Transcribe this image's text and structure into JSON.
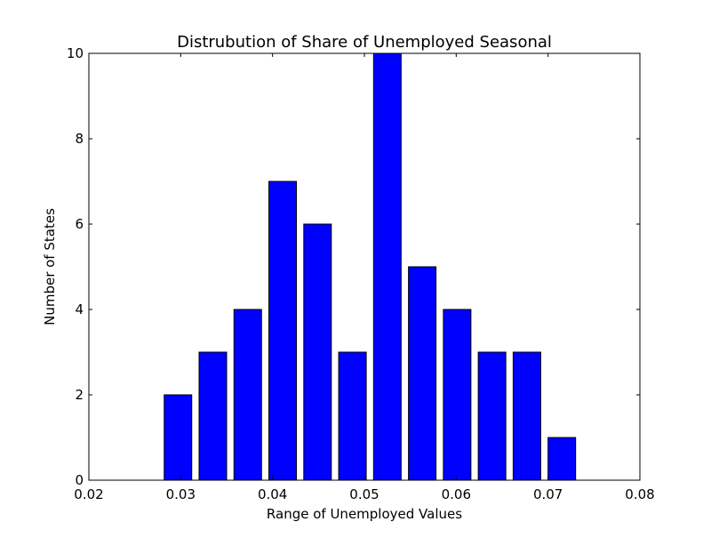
{
  "chart_data": {
    "type": "bar",
    "title": "Distrubution of Share of Unemployed Seasonal",
    "xlabel": "Range of Unemployed Values",
    "ylabel": "Number of States",
    "xlim": [
      0.02,
      0.08
    ],
    "ylim": [
      0,
      10
    ],
    "xticks": [
      0.02,
      0.03,
      0.04,
      0.05,
      0.06,
      0.07,
      0.08
    ],
    "xtick_labels": [
      "0.02",
      "0.03",
      "0.04",
      "0.05",
      "0.06",
      "0.07",
      "0.08"
    ],
    "yticks": [
      0,
      2,
      4,
      6,
      8,
      10
    ],
    "ytick_labels": [
      "0",
      "2",
      "4",
      "6",
      "8",
      "10"
    ],
    "bar_color": "#0000ff",
    "bar_edge_color": "#000000",
    "grid": false,
    "bars": [
      {
        "x0": 0.0282,
        "x1": 0.0312,
        "value": 2
      },
      {
        "x0": 0.032,
        "x1": 0.035,
        "value": 3
      },
      {
        "x0": 0.0358,
        "x1": 0.0388,
        "value": 4
      },
      {
        "x0": 0.0396,
        "x1": 0.0426,
        "value": 7
      },
      {
        "x0": 0.0434,
        "x1": 0.0464,
        "value": 6
      },
      {
        "x0": 0.0472,
        "x1": 0.0502,
        "value": 3
      },
      {
        "x0": 0.051,
        "x1": 0.054,
        "value": 10
      },
      {
        "x0": 0.0548,
        "x1": 0.0578,
        "value": 5
      },
      {
        "x0": 0.0586,
        "x1": 0.0616,
        "value": 4
      },
      {
        "x0": 0.0624,
        "x1": 0.0654,
        "value": 3
      },
      {
        "x0": 0.0662,
        "x1": 0.0692,
        "value": 3
      },
      {
        "x0": 0.07,
        "x1": 0.073,
        "value": 1
      }
    ]
  }
}
